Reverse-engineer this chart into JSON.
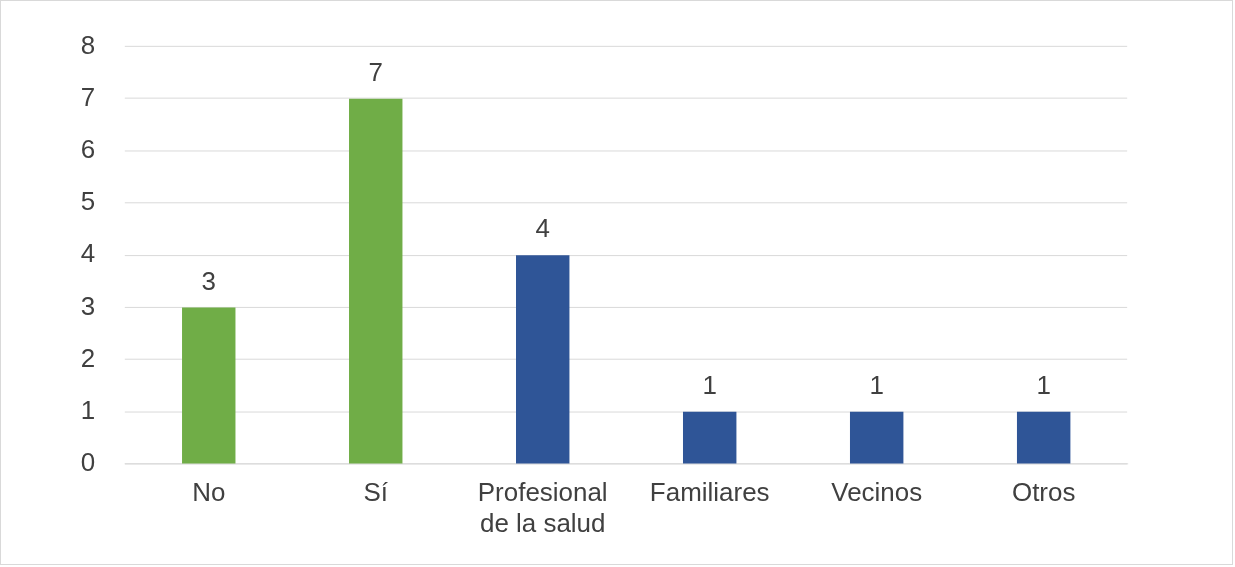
{
  "chart_data": {
    "type": "bar",
    "categories": [
      "No",
      "Sí",
      "Profesional de la salud",
      "Familiares",
      "Vecinos",
      "Otros"
    ],
    "values": [
      3,
      7,
      4,
      1,
      1,
      1
    ],
    "colors": [
      "#70ad47",
      "#70ad47",
      "#2f5597",
      "#2f5597",
      "#2f5597",
      "#2f5597"
    ],
    "ylim": [
      0,
      8
    ],
    "yticks": [
      0,
      1,
      2,
      3,
      4,
      5,
      6,
      7,
      8
    ],
    "grid": "y",
    "data_labels": true
  }
}
